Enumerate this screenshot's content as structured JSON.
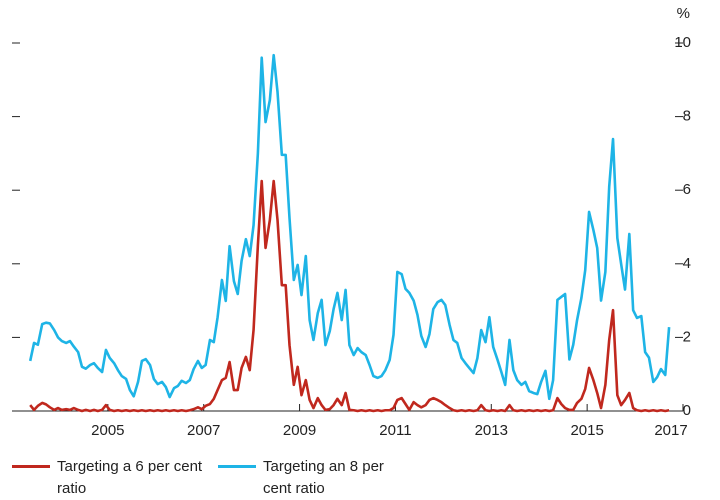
{
  "chart_data": {
    "type": "line",
    "y_label": "%",
    "x": [
      2003.38,
      2003.46,
      2003.54,
      2003.63,
      2003.71,
      2003.79,
      2003.88,
      2003.96,
      2004.04,
      2004.13,
      2004.21,
      2004.29,
      2004.38,
      2004.46,
      2004.54,
      2004.63,
      2004.71,
      2004.79,
      2004.88,
      2004.96,
      2005.04,
      2005.13,
      2005.21,
      2005.29,
      2005.38,
      2005.46,
      2005.54,
      2005.63,
      2005.71,
      2005.79,
      2005.88,
      2005.96,
      2006.04,
      2006.13,
      2006.21,
      2006.29,
      2006.38,
      2006.46,
      2006.54,
      2006.63,
      2006.71,
      2006.79,
      2006.88,
      2006.96,
      2007.04,
      2007.13,
      2007.21,
      2007.29,
      2007.38,
      2007.46,
      2007.54,
      2007.63,
      2007.71,
      2007.79,
      2007.88,
      2007.96,
      2008.04,
      2008.13,
      2008.21,
      2008.29,
      2008.38,
      2008.46,
      2008.54,
      2008.63,
      2008.71,
      2008.79,
      2008.88,
      2008.96,
      2009.04,
      2009.13,
      2009.21,
      2009.29,
      2009.38,
      2009.46,
      2009.54,
      2009.63,
      2009.71,
      2009.79,
      2009.88,
      2009.96,
      2010.04,
      2010.13,
      2010.21,
      2010.29,
      2010.38,
      2010.46,
      2010.54,
      2010.63,
      2010.71,
      2010.79,
      2010.88,
      2010.96,
      2011.04,
      2011.13,
      2011.21,
      2011.29,
      2011.38,
      2011.46,
      2011.54,
      2011.63,
      2011.71,
      2011.79,
      2011.88,
      2011.96,
      2012.04,
      2012.13,
      2012.21,
      2012.29,
      2012.38,
      2012.46,
      2012.54,
      2012.63,
      2012.71,
      2012.79,
      2012.88,
      2012.96,
      2013.04,
      2013.13,
      2013.21,
      2013.29,
      2013.38,
      2013.46,
      2013.54,
      2013.63,
      2013.71,
      2013.79,
      2013.88,
      2013.96,
      2014.04,
      2014.13,
      2014.21,
      2014.29,
      2014.38,
      2014.46,
      2014.54,
      2014.63,
      2014.71,
      2014.79,
      2014.88,
      2014.96,
      2015.04,
      2015.13,
      2015.21,
      2015.29,
      2015.38,
      2015.46,
      2015.54,
      2015.63,
      2015.71,
      2015.79,
      2015.88,
      2015.96,
      2016.04,
      2016.13,
      2016.21,
      2016.29,
      2016.38,
      2016.46,
      2016.54,
      2016.63,
      2016.71
    ],
    "series": [
      {
        "name": "Targeting a 6 per cent ratio",
        "color": "#c0281e",
        "values": [
          0.16,
          0.03,
          0.14,
          0.22,
          0.18,
          0.1,
          0.03,
          0.08,
          0.03,
          0.05,
          0.03,
          0.08,
          0.03,
          0,
          0.03,
          0,
          0.03,
          0,
          0.03,
          0.16,
          0.03,
          0,
          0.02,
          0,
          0.02,
          0,
          0.02,
          0,
          0.02,
          0,
          0.02,
          0,
          0.02,
          0,
          0.02,
          0,
          0.02,
          0,
          0.02,
          0,
          0.02,
          0.05,
          0.1,
          0.05,
          0.14,
          0.19,
          0.33,
          0.57,
          0.84,
          0.9,
          1.33,
          0.57,
          0.57,
          1.17,
          1.47,
          1.11,
          2.2,
          4.5,
          6.25,
          4.43,
          5.19,
          6.25,
          5.19,
          3.42,
          3.42,
          1.79,
          0.71,
          1.2,
          0.43,
          0.84,
          0.3,
          0.08,
          0.35,
          0.16,
          0.03,
          0.05,
          0.16,
          0.33,
          0.16,
          0.49,
          0.03,
          0.02,
          0,
          0.02,
          0,
          0.02,
          0,
          0.02,
          0,
          0.02,
          0.02,
          0.08,
          0.3,
          0.35,
          0.19,
          0.03,
          0.24,
          0.16,
          0.1,
          0.16,
          0.3,
          0.35,
          0.3,
          0.24,
          0.16,
          0.08,
          0.02,
          0,
          0.02,
          0,
          0.02,
          0,
          0.02,
          0.16,
          0.02,
          0,
          0.02,
          0,
          0.02,
          0,
          0.16,
          0.02,
          0,
          0.02,
          0,
          0.02,
          0,
          0.02,
          0,
          0.02,
          0,
          0.02,
          0.35,
          0.19,
          0.08,
          0.03,
          0.03,
          0.22,
          0.33,
          0.6,
          1.17,
          0.84,
          0.49,
          0.08,
          0.71,
          1.93,
          2.74,
          0.43,
          0.16,
          0.3,
          0.49,
          0.08,
          0.02,
          0,
          0.02,
          0,
          0.02,
          0,
          0.02,
          0,
          0.02
        ]
      },
      {
        "name": "Targeting an 8 per cent ratio",
        "color": "#1eb4e6",
        "values": [
          1.36,
          1.85,
          1.8,
          2.36,
          2.4,
          2.38,
          2.2,
          2.0,
          1.9,
          1.85,
          1.9,
          1.75,
          1.6,
          1.2,
          1.15,
          1.25,
          1.3,
          1.17,
          1.06,
          1.66,
          1.44,
          1.3,
          1.11,
          0.95,
          0.87,
          0.57,
          0.4,
          0.79,
          1.36,
          1.41,
          1.25,
          0.87,
          0.73,
          0.79,
          0.65,
          0.38,
          0.62,
          0.68,
          0.82,
          0.76,
          0.84,
          1.14,
          1.36,
          1.17,
          1.25,
          1.93,
          1.87,
          2.55,
          3.56,
          2.99,
          4.48,
          3.53,
          3.18,
          4.08,
          4.67,
          4.21,
          5.05,
          7.0,
          9.6,
          7.85,
          8.45,
          9.67,
          8.67,
          6.96,
          6.96,
          5.24,
          3.56,
          3.97,
          3.15,
          4.21,
          2.47,
          1.93,
          2.66,
          3.02,
          1.79,
          2.17,
          2.77,
          3.21,
          2.47,
          3.29,
          1.79,
          1.52,
          1.71,
          1.6,
          1.52,
          1.25,
          0.95,
          0.9,
          0.95,
          1.11,
          1.39,
          2.07,
          3.78,
          3.72,
          3.32,
          3.21,
          3.0,
          2.61,
          2.04,
          1.74,
          2.09,
          2.77,
          2.96,
          3.02,
          2.88,
          2.34,
          1.93,
          1.85,
          1.44,
          1.3,
          1.17,
          1.03,
          1.44,
          2.2,
          1.87,
          2.55,
          1.74,
          1.39,
          1.06,
          0.71,
          1.93,
          1.11,
          0.84,
          0.71,
          0.79,
          0.54,
          0.49,
          0.46,
          0.79,
          1.09,
          0.33,
          0.84,
          3.02,
          3.1,
          3.18,
          1.4,
          1.8,
          2.47,
          3.07,
          3.83,
          5.41,
          4.92,
          4.43,
          3.0,
          3.78,
          6.09,
          7.39,
          4.7,
          3.99,
          3.3,
          4.81,
          2.74,
          2.53,
          2.58,
          1.6,
          1.45,
          0.79,
          0.92,
          1.14,
          0.98,
          2.28
        ]
      }
    ],
    "xlim": [
      2003,
      2017
    ],
    "xticks": [
      2005,
      2007,
      2009,
      2011,
      2013,
      2015,
      2017
    ],
    "ylim": [
      0,
      10
    ],
    "yticks": [
      0,
      2,
      4,
      6,
      8,
      10
    ]
  }
}
